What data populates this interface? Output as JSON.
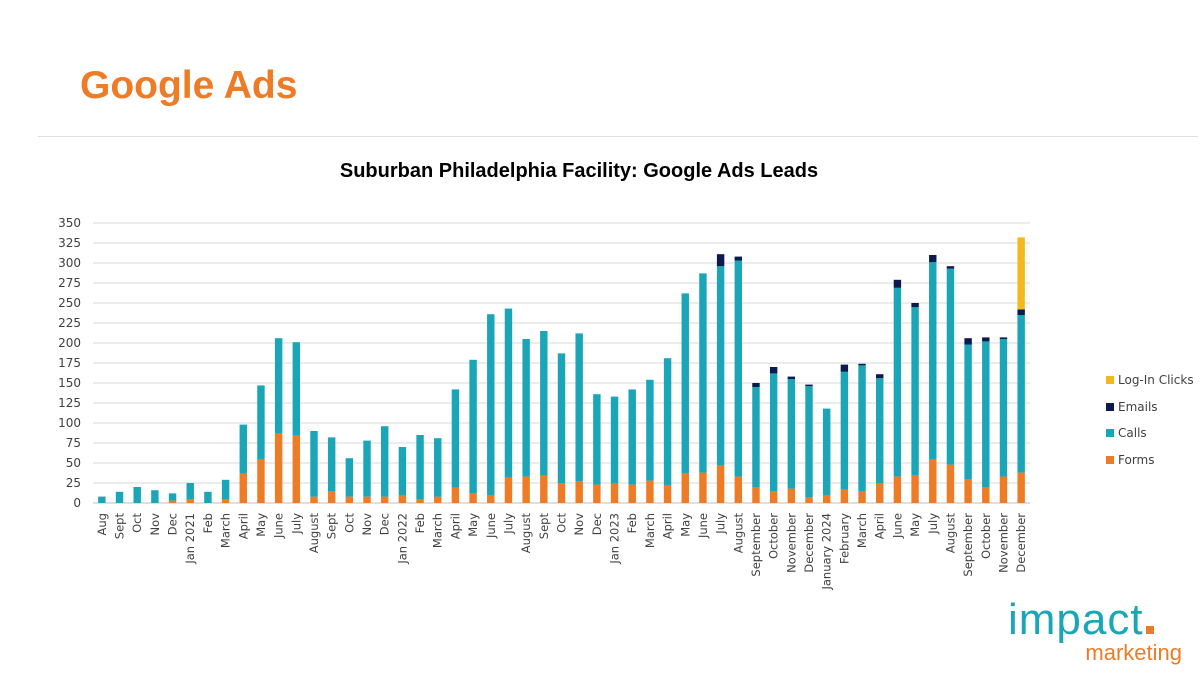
{
  "slide": {
    "title": "Google Ads"
  },
  "colors": {
    "forms": "#ee7b26",
    "calls": "#1aa6b7",
    "emails": "#0c1a4d",
    "login": "#f5b81c",
    "title": "#ee7b26"
  },
  "chart_data": {
    "type": "bar",
    "stacked": true,
    "title": "Suburban Philadelphia Facility: Google Ads Leads",
    "xlabel": "",
    "ylabel": "",
    "ylim": [
      0,
      350
    ],
    "yticks": [
      0,
      25,
      50,
      75,
      100,
      125,
      150,
      175,
      200,
      225,
      250,
      275,
      300,
      325,
      350
    ],
    "grid": true,
    "legend": "right",
    "categories": [
      "Aug",
      "Sept",
      "Oct",
      "Nov",
      "Dec",
      "Jan 2021",
      "Feb",
      "March",
      "April",
      "May",
      "June",
      "July",
      "August",
      "Sept",
      "Oct",
      "Nov",
      "Dec",
      "Jan 2022",
      "Feb",
      "March",
      "April",
      "May",
      "June",
      "July",
      "August",
      "Sept",
      "Oct",
      "Nov",
      "Dec",
      "Jan 2023",
      "Feb",
      "March",
      "April",
      "May",
      "June",
      "July",
      "August",
      "September",
      "October",
      "November",
      "December",
      "January 2024",
      "February",
      "March",
      "April",
      "June",
      "May",
      "July",
      "August",
      "September",
      "October",
      "November",
      "December"
    ],
    "series": [
      {
        "name": "Forms",
        "color_key": "forms",
        "values": [
          0,
          0,
          0,
          0,
          3,
          5,
          0,
          5,
          37,
          55,
          87,
          85,
          8,
          15,
          8,
          8,
          8,
          10,
          5,
          8,
          19,
          12,
          10,
          32,
          33,
          35,
          25,
          27,
          23,
          24,
          23,
          28,
          22,
          37,
          38,
          47,
          33,
          20,
          15,
          18,
          7,
          10,
          17,
          15,
          25,
          33,
          35,
          55,
          48,
          30,
          20,
          33,
          38
        ]
      },
      {
        "name": "Calls",
        "color_key": "calls",
        "values": [
          8,
          14,
          20,
          16,
          9,
          20,
          14,
          24,
          61,
          92,
          119,
          116,
          82,
          67,
          48,
          70,
          88,
          60,
          80,
          73,
          123,
          167,
          226,
          211,
          172,
          180,
          162,
          185,
          113,
          109,
          119,
          126,
          159,
          225,
          249,
          249,
          270,
          125,
          147,
          137,
          139,
          108,
          147,
          157,
          131,
          236,
          210,
          246,
          245,
          168,
          182,
          172,
          197
        ]
      },
      {
        "name": "Emails",
        "color_key": "emails",
        "values": [
          0,
          0,
          0,
          0,
          0,
          0,
          0,
          0,
          0,
          0,
          0,
          0,
          0,
          0,
          0,
          0,
          0,
          0,
          0,
          0,
          0,
          0,
          0,
          0,
          0,
          0,
          0,
          0,
          0,
          0,
          0,
          0,
          0,
          0,
          0,
          15,
          5,
          5,
          8,
          3,
          2,
          0,
          9,
          2,
          5,
          10,
          5,
          9,
          3,
          8,
          5,
          2,
          7
        ]
      },
      {
        "name": "Log-In Clicks",
        "color_key": "login",
        "values": [
          0,
          0,
          0,
          0,
          0,
          0,
          0,
          0,
          0,
          0,
          0,
          0,
          0,
          0,
          0,
          0,
          0,
          0,
          0,
          0,
          0,
          0,
          0,
          0,
          0,
          0,
          0,
          0,
          0,
          0,
          0,
          0,
          0,
          0,
          0,
          0,
          0,
          0,
          0,
          0,
          0,
          0,
          0,
          0,
          0,
          0,
          0,
          0,
          0,
          0,
          0,
          0,
          90
        ]
      }
    ]
  },
  "legend": {
    "items": [
      {
        "label": "Log-In Clicks",
        "color": "#f5b81c"
      },
      {
        "label": "Emails",
        "color": "#0c1a4d"
      },
      {
        "label": "Calls",
        "color": "#1aa6b7"
      },
      {
        "label": "Forms",
        "color": "#ee7b26"
      }
    ]
  },
  "logo": {
    "main": "impact",
    "sub": "marketing"
  }
}
